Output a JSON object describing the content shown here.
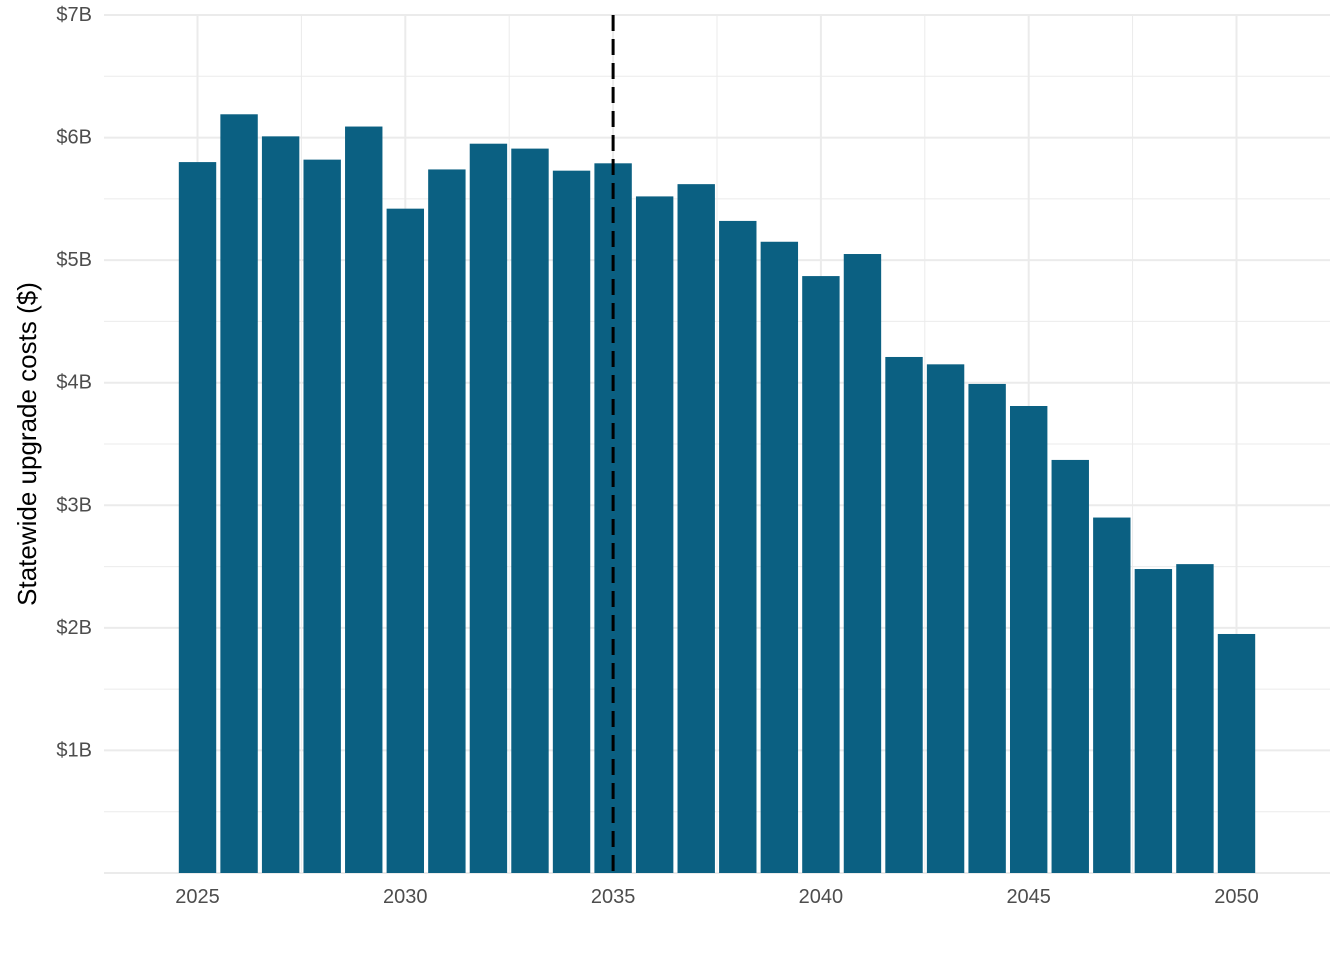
{
  "chart_data": {
    "type": "bar",
    "title": "",
    "xlabel": "",
    "ylabel": "Statewide upgrade costs ($)",
    "categories": [
      2025,
      2026,
      2027,
      2028,
      2029,
      2030,
      2031,
      2032,
      2033,
      2034,
      2035,
      2036,
      2037,
      2038,
      2039,
      2040,
      2041,
      2042,
      2043,
      2044,
      2045,
      2046,
      2047,
      2048,
      2049,
      2050
    ],
    "values": [
      5.8,
      6.19,
      6.01,
      5.82,
      6.09,
      5.42,
      5.74,
      5.95,
      5.91,
      5.73,
      5.79,
      5.52,
      5.62,
      5.32,
      5.15,
      4.87,
      5.05,
      4.21,
      4.15,
      3.99,
      3.81,
      3.37,
      2.9,
      2.48,
      2.52,
      1.95
    ],
    "value_unit": "billions of dollars",
    "xlim": [
      2022.75,
      2052.25
    ],
    "ylim": [
      0,
      7
    ],
    "x_ticks": [
      2025,
      2030,
      2035,
      2040,
      2045,
      2050
    ],
    "x_tick_labels": [
      "2025",
      "2030",
      "2035",
      "2040",
      "2045",
      "2050"
    ],
    "y_ticks": [
      1,
      2,
      3,
      4,
      5,
      6,
      7
    ],
    "y_tick_labels": [
      "$1B",
      "$2B",
      "$3B",
      "$4B",
      "$5B",
      "$6B",
      "$7B"
    ],
    "reference_line": {
      "x": 2035,
      "style": "dashed",
      "color": "#000000"
    },
    "bar_color": "#0b6082",
    "grid": true,
    "legend": "none"
  }
}
